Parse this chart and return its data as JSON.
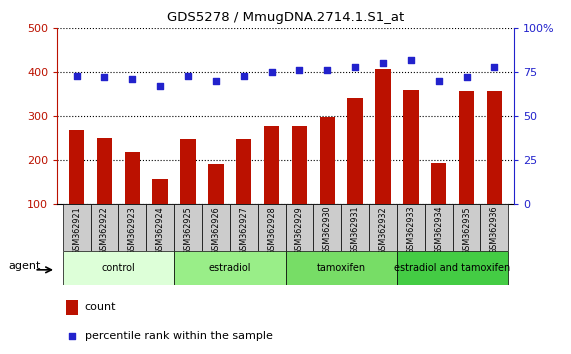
{
  "title": "GDS5278 / MmugDNA.2714.1.S1_at",
  "samples": [
    "GSM362921",
    "GSM362922",
    "GSM362923",
    "GSM362924",
    "GSM362925",
    "GSM362926",
    "GSM362927",
    "GSM362928",
    "GSM362929",
    "GSM362930",
    "GSM362931",
    "GSM362932",
    "GSM362933",
    "GSM362934",
    "GSM362935",
    "GSM362936"
  ],
  "counts": [
    268,
    250,
    218,
    157,
    248,
    190,
    248,
    278,
    278,
    298,
    342,
    408,
    360,
    193,
    358,
    358
  ],
  "percentile": [
    73,
    72,
    71,
    67,
    73,
    70,
    73,
    75,
    76,
    76,
    78,
    80,
    82,
    70,
    72,
    78
  ],
  "bar_color": "#bb1100",
  "dot_color": "#2222cc",
  "ylim_left": [
    100,
    500
  ],
  "ylim_right": [
    0,
    100
  ],
  "yticks_left": [
    100,
    200,
    300,
    400,
    500
  ],
  "yticks_right": [
    0,
    25,
    50,
    75,
    100
  ],
  "groups": [
    {
      "label": "control",
      "start": 0,
      "end": 4,
      "color": "#ddffd8"
    },
    {
      "label": "estradiol",
      "start": 4,
      "end": 8,
      "color": "#99ee88"
    },
    {
      "label": "tamoxifen",
      "start": 8,
      "end": 12,
      "color": "#77dd66"
    },
    {
      "label": "estradiol and tamoxifen",
      "start": 12,
      "end": 16,
      "color": "#44cc44"
    }
  ],
  "agent_label": "agent",
  "legend_count_label": "count",
  "legend_pct_label": "percentile rank within the sample",
  "background_color": "#ffffff",
  "plot_bg_color": "#ffffff",
  "xtick_bg_color": "#cccccc",
  "title_color": "#000000"
}
